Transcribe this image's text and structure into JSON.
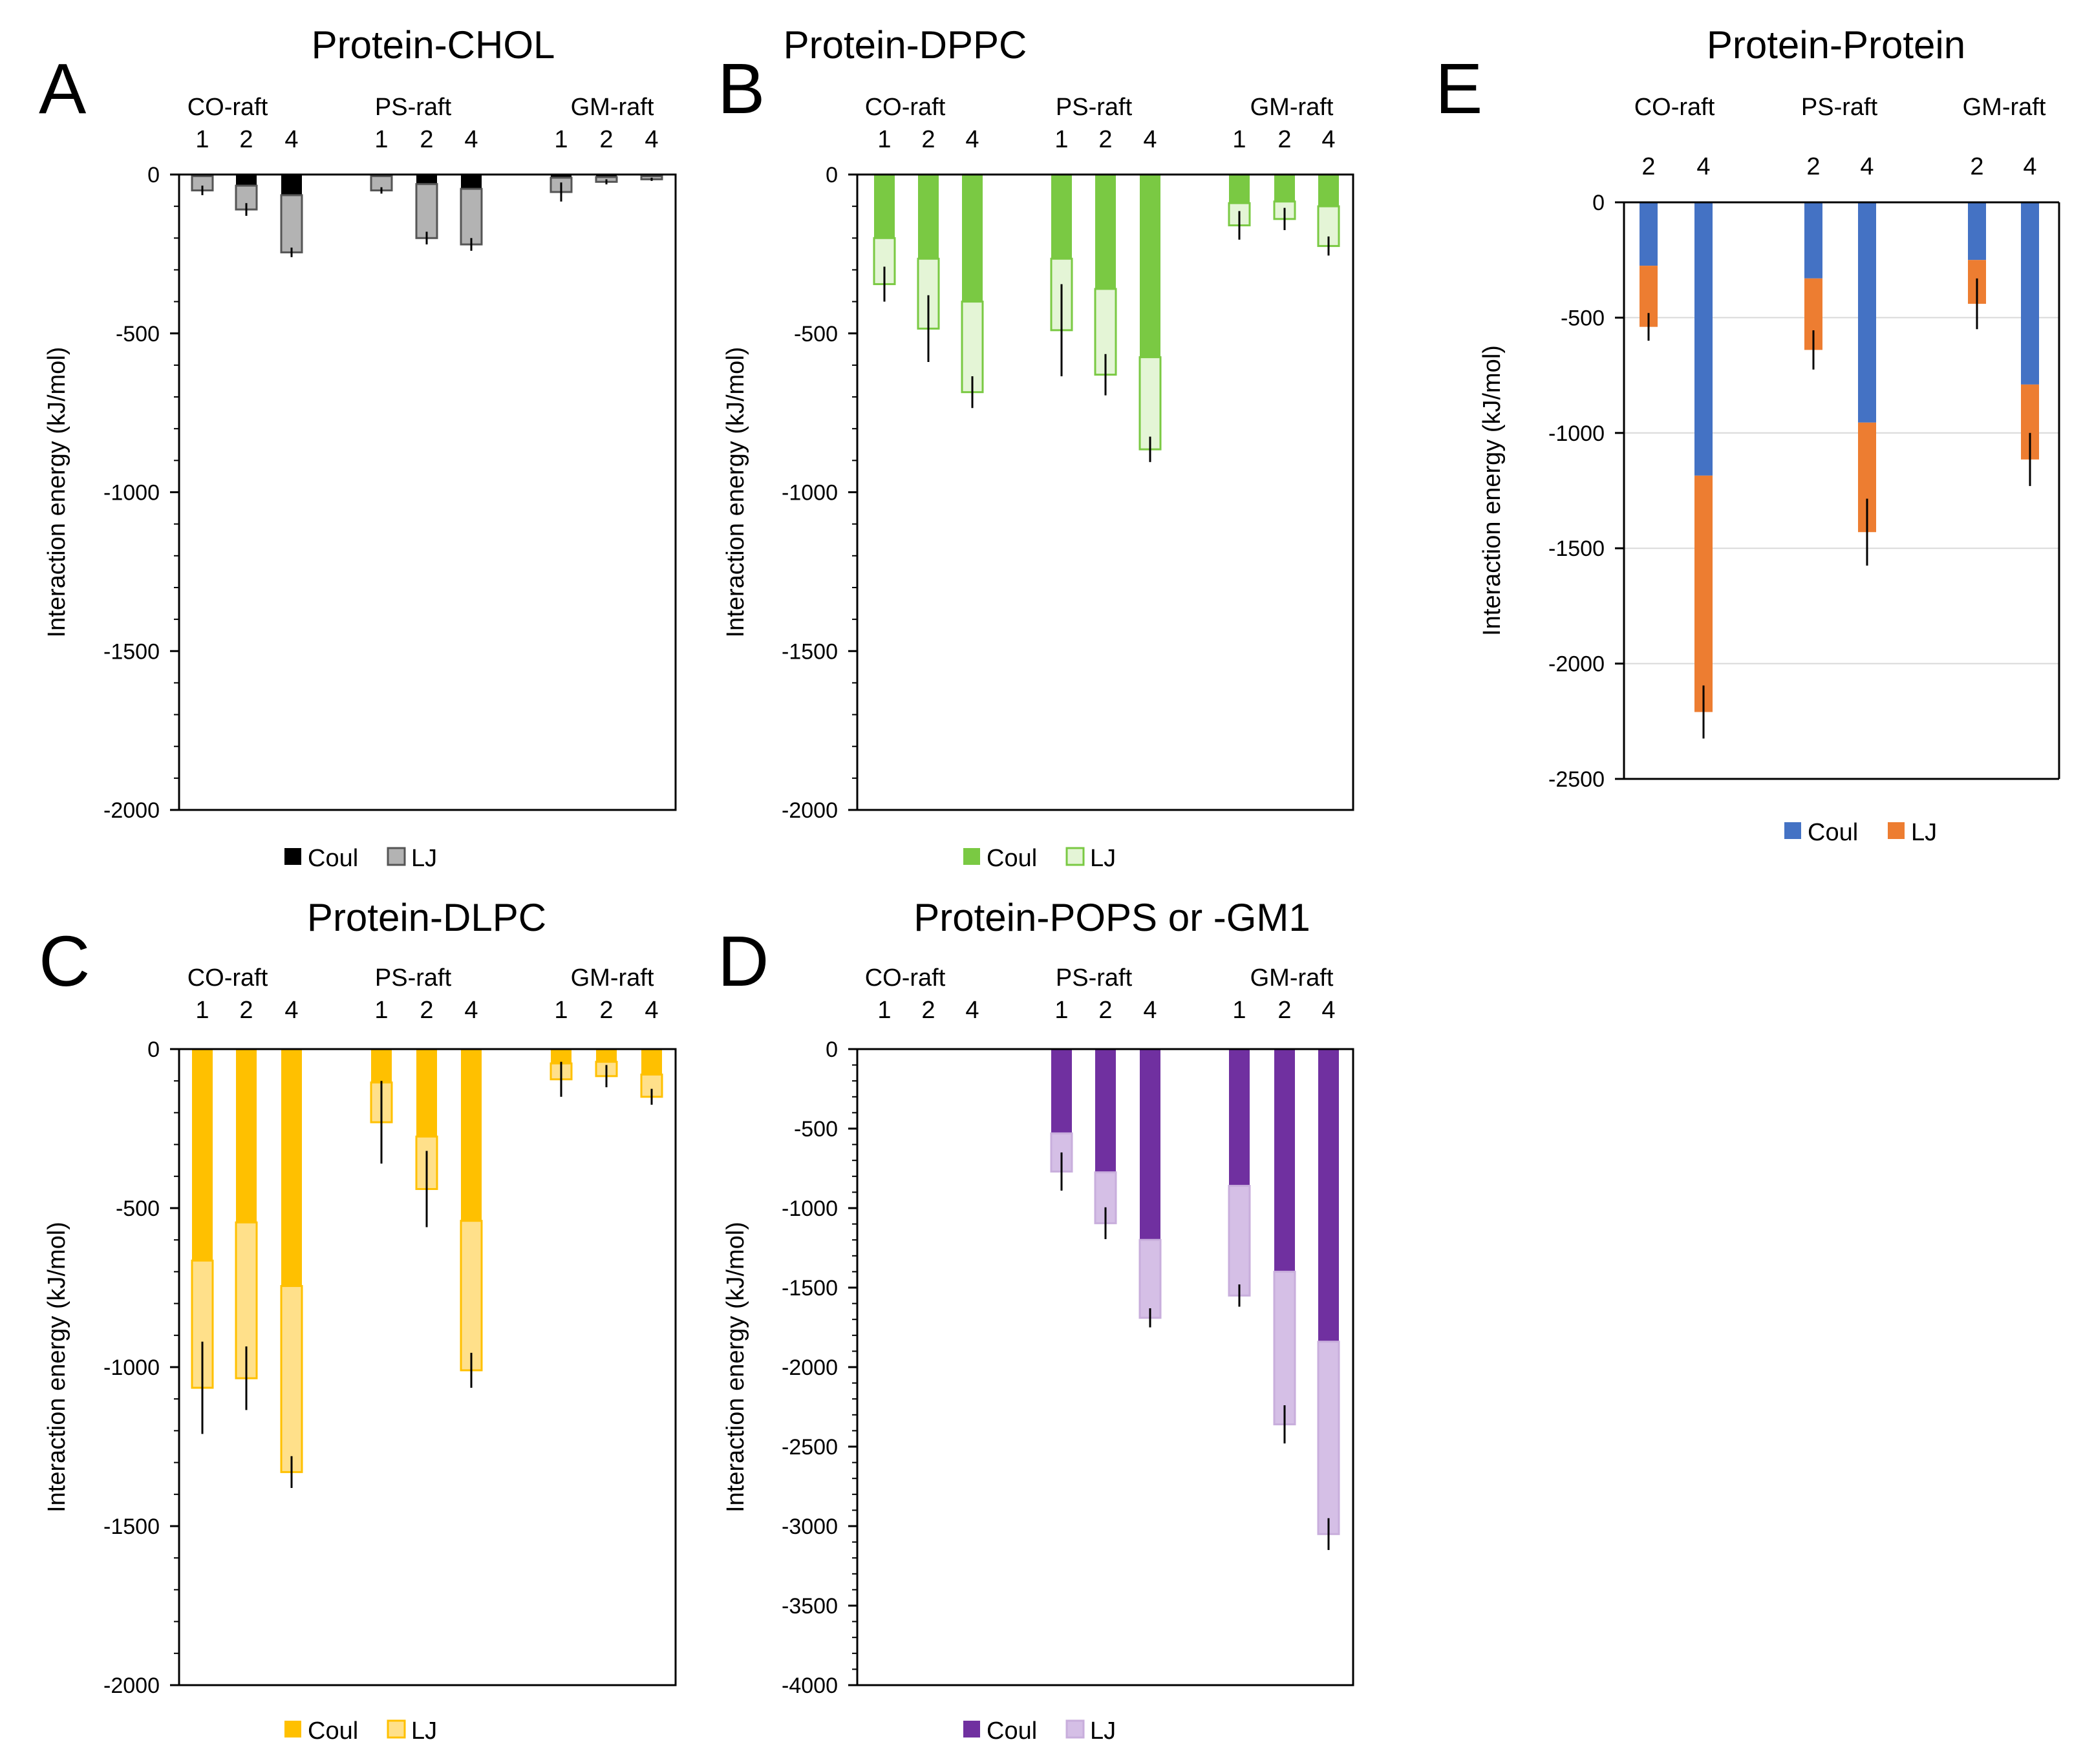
{
  "figure": {
    "description": "Five panels of stacked bar charts showing interaction energies (Coulomb + Lennard-Jones) for rafts"
  },
  "chart_data": [
    {
      "panel": "A",
      "type": "bar",
      "stacked": true,
      "title": "Protein-CHOL",
      "ylabel": "Interaction energy (kJ/mol)",
      "ylim": [
        -2000,
        0
      ],
      "yticks": [
        0,
        -500,
        -1000,
        -1500,
        -2000
      ],
      "ytick_labels": [
        "0",
        "-500",
        "-1000",
        "-1500",
        "-2000"
      ],
      "minor_step": 100,
      "gridlines": false,
      "groups": [
        {
          "name": "CO-raft",
          "categories": [
            "1",
            "2",
            "4"
          ]
        },
        {
          "name": "PS-raft",
          "categories": [
            "1",
            "2",
            "4"
          ]
        },
        {
          "name": "GM-raft",
          "categories": [
            "1",
            "2",
            "4"
          ]
        }
      ],
      "series": [
        {
          "name": "Coul",
          "color": "#000000",
          "values": [
            -5,
            -35,
            -65,
            -5,
            -30,
            -45,
            -10,
            -8,
            -5
          ]
        },
        {
          "name": "LJ",
          "color": "#b3b3b3",
          "border": "#555555",
          "values": [
            -45,
            -75,
            -180,
            -45,
            -170,
            -175,
            -45,
            -15,
            -10
          ]
        }
      ],
      "error": [
        15,
        20,
        15,
        10,
        20,
        20,
        30,
        8,
        5
      ],
      "legend": [
        "Coul",
        "LJ"
      ]
    },
    {
      "panel": "B",
      "type": "bar",
      "stacked": true,
      "title": "Protein-DPPC",
      "ylabel": "Interaction energy (kJ/mol)",
      "ylim": [
        -2000,
        0
      ],
      "yticks": [
        0,
        -500,
        -1000,
        -1500,
        -2000
      ],
      "ytick_labels": [
        "0",
        "-500",
        "-1000",
        "-1500",
        "-2000"
      ],
      "minor_step": 100,
      "gridlines": false,
      "groups": [
        {
          "name": "CO-raft",
          "categories": [
            "1",
            "2",
            "4"
          ]
        },
        {
          "name": "PS-raft",
          "categories": [
            "1",
            "2",
            "4"
          ]
        },
        {
          "name": "GM-raft",
          "categories": [
            "1",
            "2",
            "4"
          ]
        }
      ],
      "series": [
        {
          "name": "Coul",
          "color": "#7ac943",
          "values": [
            -200,
            -265,
            -400,
            -265,
            -360,
            -575,
            -90,
            -85,
            -100
          ]
        },
        {
          "name": "LJ",
          "color": "#e4f5d6",
          "border": "#7ac943",
          "values": [
            -145,
            -220,
            -285,
            -225,
            -270,
            -290,
            -70,
            -55,
            -125
          ]
        }
      ],
      "error": [
        55,
        105,
        50,
        145,
        65,
        40,
        45,
        35,
        30
      ],
      "legend": [
        "Coul",
        "LJ"
      ]
    },
    {
      "panel": "C",
      "type": "bar",
      "stacked": true,
      "title": "Protein-DLPC",
      "ylabel": "Interaction energy (kJ/mol)",
      "ylim": [
        -2000,
        0
      ],
      "yticks": [
        0,
        -500,
        -1000,
        -1500,
        -2000
      ],
      "ytick_labels": [
        "0",
        "-500",
        "-1000",
        "-1500",
        "-2000"
      ],
      "minor_step": 100,
      "gridlines": false,
      "groups": [
        {
          "name": "CO-raft",
          "categories": [
            "1",
            "2",
            "4"
          ]
        },
        {
          "name": "PS-raft",
          "categories": [
            "1",
            "2",
            "4"
          ]
        },
        {
          "name": "GM-raft",
          "categories": [
            "1",
            "2",
            "4"
          ]
        }
      ],
      "series": [
        {
          "name": "Coul",
          "color": "#ffc000",
          "values": [
            -665,
            -545,
            -745,
            -105,
            -275,
            -540,
            -45,
            -40,
            -80
          ]
        },
        {
          "name": "LJ",
          "color": "#ffe08a",
          "border": "#ffc000",
          "values": [
            -400,
            -490,
            -585,
            -125,
            -165,
            -470,
            -50,
            -45,
            -70
          ]
        }
      ],
      "error": [
        145,
        100,
        50,
        130,
        120,
        55,
        55,
        35,
        25
      ],
      "legend": [
        "Coul",
        "LJ"
      ]
    },
    {
      "panel": "D",
      "type": "bar",
      "stacked": true,
      "title": "Protein-POPS or -GM1",
      "ylabel": "Interaction energy (kJ/mol)",
      "ylim": [
        -4000,
        0
      ],
      "yticks": [
        0,
        -500,
        -1000,
        -1500,
        -2000,
        -2500,
        -3000,
        -3500,
        -4000
      ],
      "ytick_labels": [
        "0",
        "-500",
        "-1000",
        "-1500",
        "-2000",
        "-2500",
        "-3000",
        "-3500",
        "-4000"
      ],
      "minor_step": 100,
      "gridlines": false,
      "groups": [
        {
          "name": "CO-raft",
          "categories": [
            "1",
            "2",
            "4"
          ]
        },
        {
          "name": "PS-raft",
          "categories": [
            "1",
            "2",
            "4"
          ]
        },
        {
          "name": "GM-raft",
          "categories": [
            "1",
            "2",
            "4"
          ]
        }
      ],
      "series": [
        {
          "name": "Coul",
          "color": "#7030a0",
          "values": [
            null,
            null,
            null,
            -530,
            -775,
            -1200,
            -860,
            -1400,
            -1840
          ]
        },
        {
          "name": "LJ",
          "color": "#d5bfe6",
          "border": "#c8aedc",
          "values": [
            null,
            null,
            null,
            -240,
            -320,
            -490,
            -690,
            -960,
            -1210
          ]
        }
      ],
      "error": [
        null,
        null,
        null,
        120,
        100,
        60,
        70,
        120,
        100
      ],
      "legend": [
        "Coul",
        "LJ"
      ]
    },
    {
      "panel": "E",
      "type": "bar",
      "stacked": true,
      "title": "Protein-Protein",
      "ylabel": "Interaction energy (kJ/mol)",
      "ylim": [
        -2500,
        0
      ],
      "yticks": [
        0,
        -500,
        -1000,
        -1500,
        -2000,
        -2500
      ],
      "ytick_labels": [
        "0",
        "-500",
        "-1000",
        "-1500",
        "-2000",
        "-2500"
      ],
      "gridlines": true,
      "groups": [
        {
          "name": "CO-raft",
          "categories": [
            "2",
            "4"
          ]
        },
        {
          "name": "PS-raft",
          "categories": [
            "2",
            "4"
          ]
        },
        {
          "name": "GM-raft",
          "categories": [
            "2",
            "4"
          ]
        }
      ],
      "series": [
        {
          "name": "Coul",
          "color": "#4472c4",
          "values": [
            -275,
            -1185,
            -330,
            -955,
            -250,
            -790
          ]
        },
        {
          "name": "LJ",
          "color": "#ed7d31",
          "values": [
            -265,
            -1025,
            -310,
            -475,
            -190,
            -325
          ]
        }
      ],
      "error": [
        60,
        115,
        85,
        145,
        110,
        115
      ],
      "legend": [
        "Coul",
        "LJ"
      ]
    }
  ]
}
